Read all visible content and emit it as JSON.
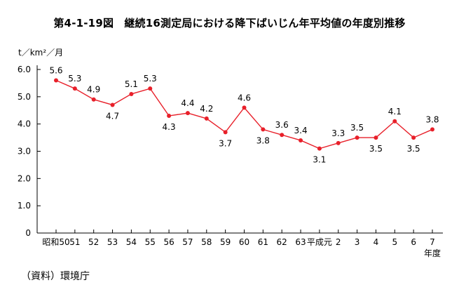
{
  "title": "第4-1-19図　継続16測定局における降下ばいじん年平均値の年度別推移",
  "unit_label": "t／km²／月",
  "source_note": "（資料）環境庁",
  "colors": {
    "series": "#e8202a",
    "axis": "#000000"
  },
  "chart_data": {
    "type": "line",
    "categories": [
      "昭和50",
      "51",
      "52",
      "53",
      "54",
      "55",
      "56",
      "57",
      "58",
      "59",
      "60",
      "61",
      "62",
      "63",
      "平成元",
      "2",
      "3",
      "4",
      "5",
      "6",
      "7"
    ],
    "values": [
      5.6,
      5.3,
      4.9,
      4.7,
      5.1,
      5.3,
      4.3,
      4.4,
      4.2,
      3.7,
      4.6,
      3.8,
      3.6,
      3.4,
      3.1,
      3.3,
      3.5,
      3.5,
      4.1,
      3.5,
      3.8
    ],
    "data_labels": [
      "5.6",
      "5.3",
      "4.9",
      "4.7",
      "5.1",
      "5.3",
      "4.3",
      "4.4",
      "4.2",
      "3.7",
      "4.6",
      "3.8",
      "3.6",
      "3.4",
      "3.1",
      "3.3",
      "3.5",
      "3.5",
      "4.1",
      "3.5",
      "3.8"
    ],
    "label_positions": [
      "above",
      "above",
      "above",
      "below",
      "above",
      "above",
      "below",
      "above",
      "above",
      "below",
      "above",
      "below",
      "above",
      "above",
      "below",
      "above",
      "above",
      "below",
      "above",
      "below",
      "above"
    ],
    "ylim": [
      0,
      6.0
    ],
    "yticks": [
      0,
      1.0,
      2.0,
      3.0,
      4.0,
      5.0,
      6.0
    ],
    "ytick_labels": [
      "0",
      "1.0",
      "2.0",
      "3.0",
      "4.0",
      "5.0",
      "6.0"
    ],
    "ylabel": "t／km²／月",
    "xlabel": "年度",
    "title": "第4-1-19図　継続16測定局における降下ばいじん年平均値の年度別推移",
    "grid": false,
    "legend": "none"
  }
}
